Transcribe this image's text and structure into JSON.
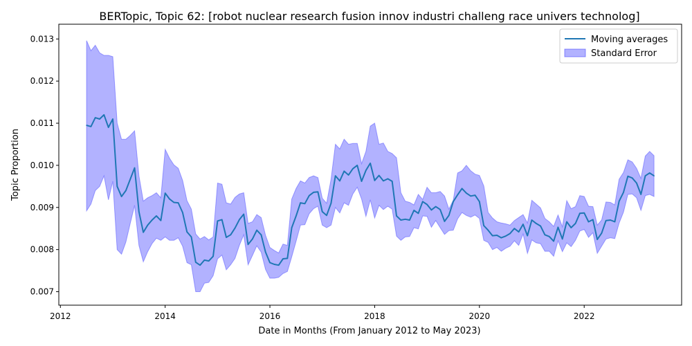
{
  "chart_data": {
    "type": "line",
    "title": "BERTopic, Topic 62: [robot nuclear research fusion innov industri challeng race univers technolog]",
    "xlabel": "Date in Months (From January 2012 to May 2023)",
    "ylabel": "Topic Proportion",
    "xlim": [
      2011.97,
      2023.86
    ],
    "ylim": [
      0.00668,
      0.01335
    ],
    "x_ticks": [
      2012,
      2014,
      2016,
      2018,
      2020,
      2022
    ],
    "y_ticks": [
      0.007,
      0.008,
      0.009,
      0.01,
      0.011,
      0.012,
      0.013
    ],
    "y_tick_labels": [
      "0.007",
      "0.008",
      "0.009",
      "0.010",
      "0.011",
      "0.012",
      "0.013"
    ],
    "grid": false,
    "legend_position": "top-right",
    "colors": {
      "line": "#1f77b4",
      "band": "#0000ff",
      "band_edge": "#4b4bff"
    },
    "series": [
      {
        "name": "Moving averages",
        "x": [
          "2012-07",
          "2012-08",
          "2012-09",
          "2012-10",
          "2012-11",
          "2012-12",
          "2013-01",
          "2013-02",
          "2013-03",
          "2013-04",
          "2013-05",
          "2013-06",
          "2013-07",
          "2013-08",
          "2013-09",
          "2013-10",
          "2013-11",
          "2013-12",
          "2014-01",
          "2014-02",
          "2014-03",
          "2014-04",
          "2014-05",
          "2014-06",
          "2014-07",
          "2014-08",
          "2014-09",
          "2014-10",
          "2014-11",
          "2014-12",
          "2015-01",
          "2015-02",
          "2015-03",
          "2015-04",
          "2015-05",
          "2015-06",
          "2015-07",
          "2015-08",
          "2015-09",
          "2015-10",
          "2015-11",
          "2015-12",
          "2016-01",
          "2016-02",
          "2016-03",
          "2016-04",
          "2016-05",
          "2016-06",
          "2016-07",
          "2016-08",
          "2016-09",
          "2016-10",
          "2016-11",
          "2016-12",
          "2017-01",
          "2017-02",
          "2017-03",
          "2017-04",
          "2017-05",
          "2017-06",
          "2017-07",
          "2017-08",
          "2017-09",
          "2017-10",
          "2017-11",
          "2017-12",
          "2018-01",
          "2018-02",
          "2018-03",
          "2018-04",
          "2018-05",
          "2018-06",
          "2018-07",
          "2018-08",
          "2018-09",
          "2018-10",
          "2018-11",
          "2018-12",
          "2019-01",
          "2019-02",
          "2019-03",
          "2019-04",
          "2019-05",
          "2019-06",
          "2019-07",
          "2019-08",
          "2019-09",
          "2019-10",
          "2019-11",
          "2019-12",
          "2020-01",
          "2020-02",
          "2020-03",
          "2020-04",
          "2020-05",
          "2020-06",
          "2020-07",
          "2020-08",
          "2020-09",
          "2020-10",
          "2020-11",
          "2020-12",
          "2021-01",
          "2021-02",
          "2021-03",
          "2021-04",
          "2021-05",
          "2021-06",
          "2021-07",
          "2021-08",
          "2021-09",
          "2021-10",
          "2021-11",
          "2021-12",
          "2022-01",
          "2022-02",
          "2022-03",
          "2022-04",
          "2022-05",
          "2022-06",
          "2022-07",
          "2022-08",
          "2022-09",
          "2022-10",
          "2022-11",
          "2022-12",
          "2023-01",
          "2023-02",
          "2023-03",
          "2023-04",
          "2023-05"
        ],
        "values": [
          0.01095,
          0.01092,
          0.01113,
          0.0111,
          0.0112,
          0.0109,
          0.0111,
          0.0095,
          0.00926,
          0.0094,
          0.00967,
          0.00994,
          0.0089,
          0.00841,
          0.00858,
          0.0087,
          0.0088,
          0.00869,
          0.00934,
          0.0092,
          0.00912,
          0.00911,
          0.00888,
          0.00842,
          0.0083,
          0.0077,
          0.00763,
          0.00775,
          0.00773,
          0.00784,
          0.00868,
          0.00871,
          0.00829,
          0.00835,
          0.00851,
          0.00871,
          0.00884,
          0.00812,
          0.00825,
          0.00846,
          0.00835,
          0.00794,
          0.00769,
          0.00765,
          0.00763,
          0.00778,
          0.00779,
          0.00852,
          0.0088,
          0.00911,
          0.00909,
          0.00928,
          0.00936,
          0.00937,
          0.0089,
          0.00881,
          0.0091,
          0.00975,
          0.00963,
          0.00986,
          0.00977,
          0.00992,
          0.01,
          0.00962,
          0.00988,
          0.01005,
          0.00964,
          0.00976,
          0.00963,
          0.00968,
          0.00962,
          0.0088,
          0.0087,
          0.00872,
          0.0087,
          0.00893,
          0.00886,
          0.00914,
          0.00907,
          0.00894,
          0.00902,
          0.00895,
          0.00867,
          0.00881,
          0.00914,
          0.0093,
          0.00945,
          0.00934,
          0.00927,
          0.00929,
          0.00914,
          0.00857,
          0.00846,
          0.00833,
          0.00834,
          0.00828,
          0.00832,
          0.00838,
          0.0085,
          0.00842,
          0.0086,
          0.00833,
          0.0087,
          0.00862,
          0.00856,
          0.00835,
          0.00831,
          0.0082,
          0.00853,
          0.00825,
          0.00866,
          0.00852,
          0.00862,
          0.00886,
          0.00887,
          0.00866,
          0.00871,
          0.00824,
          0.00839,
          0.00869,
          0.0087,
          0.00866,
          0.00915,
          0.00936,
          0.00974,
          0.0097,
          0.00958,
          0.00931,
          0.00975,
          0.00982,
          0.00975
        ]
      },
      {
        "name": "Standard Error",
        "upper": [
          0.01296,
          0.01272,
          0.01285,
          0.01267,
          0.01261,
          0.01261,
          0.01258,
          0.011,
          0.01062,
          0.01062,
          0.01071,
          0.01082,
          0.00975,
          0.00915,
          0.00923,
          0.00928,
          0.00935,
          0.00923,
          0.01038,
          0.01017,
          0.01001,
          0.00993,
          0.00964,
          0.00916,
          0.00896,
          0.00837,
          0.00825,
          0.00831,
          0.00823,
          0.0083,
          0.00958,
          0.00955,
          0.00911,
          0.00908,
          0.00924,
          0.00932,
          0.00935,
          0.00862,
          0.00866,
          0.00883,
          0.00876,
          0.00834,
          0.00805,
          0.00798,
          0.00792,
          0.00813,
          0.0081,
          0.0092,
          0.00945,
          0.00963,
          0.00958,
          0.00971,
          0.00975,
          0.00971,
          0.00922,
          0.0091,
          0.00967,
          0.0105,
          0.01039,
          0.01062,
          0.0105,
          0.01052,
          0.01052,
          0.01004,
          0.01033,
          0.01093,
          0.011,
          0.0105,
          0.01053,
          0.01033,
          0.01028,
          0.01018,
          0.00935,
          0.00915,
          0.00912,
          0.00906,
          0.00931,
          0.00919,
          0.00948,
          0.00935,
          0.00935,
          0.00938,
          0.00927,
          0.00896,
          0.00917,
          0.00982,
          0.00987,
          0.01,
          0.00987,
          0.00979,
          0.00976,
          0.00951,
          0.00888,
          0.00875,
          0.00866,
          0.00863,
          0.00861,
          0.00858,
          0.00869,
          0.00876,
          0.00883,
          0.00863,
          0.00917,
          0.00908,
          0.00899,
          0.00874,
          0.00866,
          0.00855,
          0.00882,
          0.00854,
          0.00916,
          0.00897,
          0.00902,
          0.00928,
          0.00926,
          0.00903,
          0.00902,
          0.00858,
          0.0087,
          0.00913,
          0.00912,
          0.00906,
          0.00967,
          0.00983,
          0.01013,
          0.01008,
          0.00993,
          0.00969,
          0.01022,
          0.01033,
          0.01023
        ],
        "lower": [
          0.00892,
          0.00908,
          0.0094,
          0.0095,
          0.00975,
          0.00918,
          0.00962,
          0.008,
          0.00789,
          0.00818,
          0.00862,
          0.00905,
          0.0081,
          0.00771,
          0.00795,
          0.00814,
          0.00827,
          0.00822,
          0.0083,
          0.00822,
          0.00822,
          0.00828,
          0.00808,
          0.00769,
          0.00764,
          0.007,
          0.007,
          0.0072,
          0.00722,
          0.00738,
          0.00778,
          0.00787,
          0.00752,
          0.00764,
          0.00779,
          0.0081,
          0.00835,
          0.00764,
          0.00786,
          0.00809,
          0.00794,
          0.00753,
          0.00732,
          0.00732,
          0.00734,
          0.00743,
          0.00748,
          0.00783,
          0.0082,
          0.00858,
          0.00859,
          0.00885,
          0.00897,
          0.00903,
          0.00858,
          0.00852,
          0.00858,
          0.009,
          0.00887,
          0.00911,
          0.00905,
          0.00932,
          0.00948,
          0.0092,
          0.00879,
          0.00918,
          0.00875,
          0.00905,
          0.00895,
          0.00903,
          0.00896,
          0.00832,
          0.00822,
          0.0083,
          0.00831,
          0.00852,
          0.00849,
          0.0088,
          0.00879,
          0.00853,
          0.00869,
          0.00852,
          0.00836,
          0.00845,
          0.00846,
          0.00873,
          0.00888,
          0.00881,
          0.00877,
          0.00882,
          0.00874,
          0.00822,
          0.00817,
          0.008,
          0.00805,
          0.00796,
          0.00803,
          0.00808,
          0.00821,
          0.0081,
          0.00837,
          0.00791,
          0.00823,
          0.00816,
          0.00814,
          0.00796,
          0.00796,
          0.00784,
          0.00821,
          0.00795,
          0.00816,
          0.00807,
          0.00822,
          0.00844,
          0.00848,
          0.00829,
          0.0084,
          0.00791,
          0.00808,
          0.00825,
          0.00828,
          0.00826,
          0.00863,
          0.00889,
          0.00931,
          0.00932,
          0.00923,
          0.00893,
          0.00928,
          0.00931,
          0.00926
        ]
      }
    ]
  }
}
